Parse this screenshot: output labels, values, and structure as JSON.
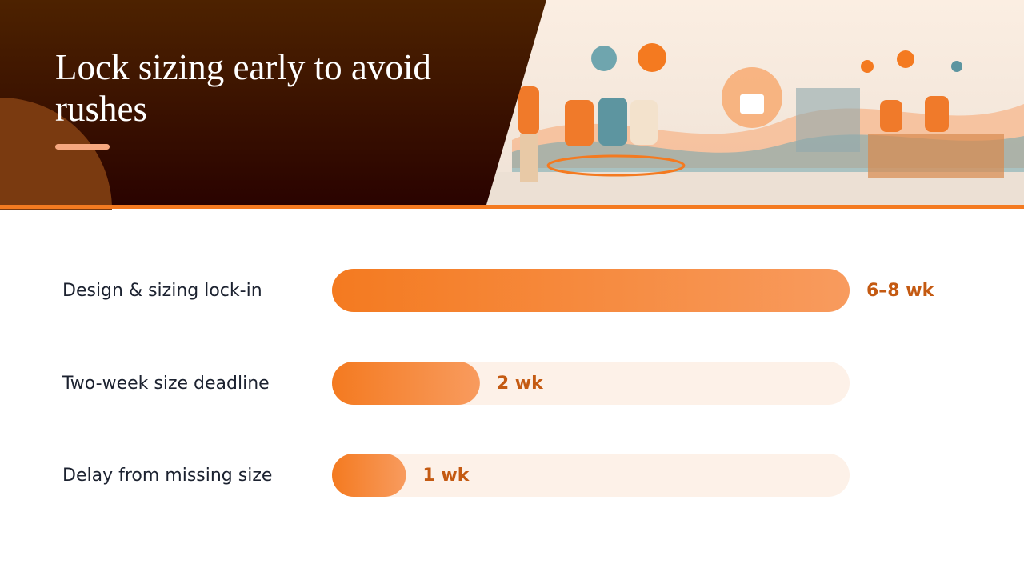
{
  "chart_data": {
    "type": "bar",
    "orientation": "horizontal",
    "title": "Lock sizing early to avoid rushes",
    "categories": [
      "Design & sizing lock-in",
      "Two-week size deadline",
      "Delay from missing size"
    ],
    "values": [
      7,
      2,
      1
    ],
    "value_labels": [
      "6–8 wk",
      "2 wk",
      "1 wk"
    ],
    "xlim": [
      0,
      7
    ],
    "color": "#f47a20"
  }
}
